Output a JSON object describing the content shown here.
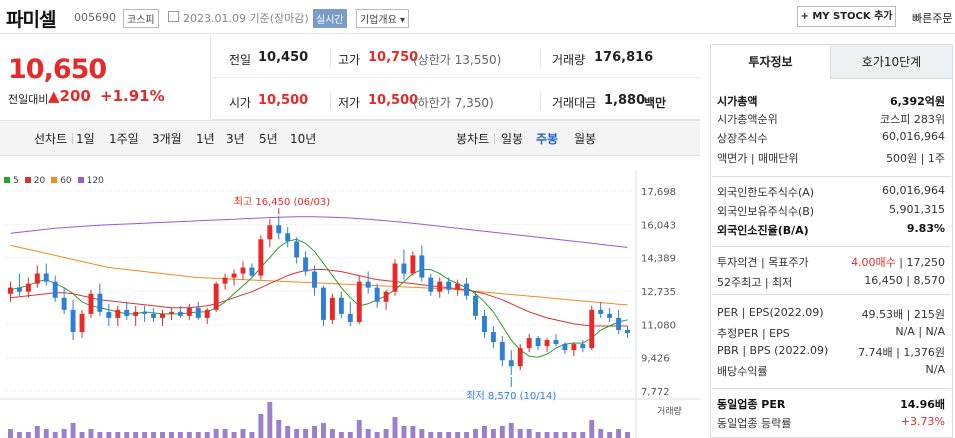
{
  "header": {
    "name": "파미셀",
    "code": "005690",
    "market": "코스피",
    "date": "2023.01.09 기준(장마감)",
    "realtime": "실시간",
    "company_info": "기업개요 ▾",
    "mystock": "+ MY STOCK 추가",
    "quick_order": "빠른주문"
  },
  "price": {
    "current": "10,650",
    "compare_label": "전일대비",
    "change": "▲200",
    "change_pct": "+1.91%"
  },
  "quote": {
    "prev_label": "전일",
    "prev": "10,450",
    "high_label": "고가",
    "high": "10,750",
    "upper_limit": "(상한가 13,550)",
    "volume_label": "거래량",
    "volume": "176,816",
    "open_label": "시가",
    "open": "10,500",
    "low_label": "저가",
    "low": "10,500",
    "lower_limit": "(하한가 7,350)",
    "amount_label": "거래대금",
    "amount": "1,880",
    "amount_unit": "백만"
  },
  "chart_tabs": {
    "line_label": "선차트",
    "line_items": [
      "1일",
      "1주일",
      "3개월",
      "1년",
      "3년",
      "5년",
      "10년"
    ],
    "candle_label": "봉차트",
    "candle_items": [
      "일봉",
      "주봉",
      "월봉"
    ],
    "selected": "주봉"
  },
  "chart_data": {
    "type": "candlestick",
    "legend": [
      {
        "name": "5",
        "color": "#2ca02c"
      },
      {
        "name": "20",
        "color": "#e03030"
      },
      {
        "name": "60",
        "color": "#f08c1c"
      },
      {
        "name": "120",
        "color": "#9b59d0"
      }
    ],
    "y_ticks": [
      "17,698",
      "16,043",
      "14,389",
      "12,735",
      "11,080",
      "9,426",
      "7,772"
    ],
    "ylim": [
      7772,
      17698
    ],
    "max_label": "최고 16,450 (06/03)",
    "min_label": "최저 8,570 (10/14)",
    "volume_label": "거래량",
    "candles": [
      [
        12600,
        13200,
        12200,
        12900
      ],
      [
        12900,
        13600,
        12500,
        12700
      ],
      [
        12700,
        13400,
        12400,
        13100
      ],
      [
        13100,
        14000,
        12900,
        13600
      ],
      [
        13600,
        14100,
        13000,
        13200
      ],
      [
        13200,
        13500,
        12200,
        12400
      ],
      [
        12400,
        12900,
        11600,
        11800
      ],
      [
        11800,
        12300,
        10300,
        10700
      ],
      [
        10700,
        11800,
        10400,
        11600
      ],
      [
        11600,
        12800,
        11400,
        12600
      ],
      [
        12600,
        13100,
        11500,
        11700
      ],
      [
        11700,
        12100,
        11000,
        11400
      ],
      [
        11400,
        12000,
        11000,
        11800
      ],
      [
        11800,
        12200,
        11300,
        11500
      ],
      [
        11500,
        12000,
        11000,
        11700
      ],
      [
        11700,
        12000,
        11200,
        11600
      ],
      [
        11600,
        11900,
        11200,
        11400
      ],
      [
        11400,
        11800,
        11000,
        11600
      ],
      [
        11600,
        11900,
        11300,
        11700
      ],
      [
        11700,
        12000,
        11400,
        11500
      ],
      [
        11500,
        12100,
        11300,
        11900
      ],
      [
        11900,
        12200,
        11300,
        11400
      ],
      [
        11400,
        11900,
        11100,
        11800
      ],
      [
        11800,
        13200,
        11700,
        13100
      ],
      [
        13100,
        13600,
        12800,
        13400
      ],
      [
        13400,
        13800,
        13000,
        13600
      ],
      [
        13600,
        14200,
        13300,
        13900
      ],
      [
        13900,
        14100,
        13400,
        13500
      ],
      [
        13500,
        15500,
        13300,
        15300
      ],
      [
        15300,
        16300,
        14900,
        16000
      ],
      [
        16000,
        16450,
        15300,
        15600
      ],
      [
        15600,
        15900,
        14900,
        15200
      ],
      [
        15200,
        15400,
        14100,
        14400
      ],
      [
        14400,
        14700,
        13500,
        13700
      ],
      [
        13700,
        14000,
        12500,
        12900
      ],
      [
        12900,
        13000,
        11000,
        11300
      ],
      [
        11300,
        12600,
        11100,
        12400
      ],
      [
        12400,
        12700,
        11400,
        11600
      ],
      [
        11600,
        12200,
        11000,
        11200
      ],
      [
        11200,
        13500,
        11100,
        13200
      ],
      [
        13200,
        13700,
        12600,
        12900
      ],
      [
        12900,
        13100,
        11900,
        12200
      ],
      [
        12200,
        12800,
        11800,
        12700
      ],
      [
        12700,
        14300,
        12500,
        14100
      ],
      [
        14100,
        14800,
        13300,
        13600
      ],
      [
        13600,
        14700,
        13500,
        14500
      ],
      [
        14500,
        15000,
        13200,
        13400
      ],
      [
        13400,
        13600,
        12500,
        12700
      ],
      [
        12700,
        13400,
        12400,
        13200
      ],
      [
        13200,
        13400,
        12600,
        12800
      ],
      [
        12800,
        13300,
        12500,
        13100
      ],
      [
        13100,
        13400,
        12300,
        12500
      ],
      [
        12500,
        12700,
        11300,
        11500
      ],
      [
        11500,
        11800,
        10400,
        10700
      ],
      [
        10700,
        11000,
        9900,
        10200
      ],
      [
        10200,
        10500,
        9000,
        9300
      ],
      [
        9300,
        9800,
        8570,
        9000
      ],
      [
        9000,
        10100,
        8800,
        9900
      ],
      [
        9900,
        10600,
        9700,
        10400
      ],
      [
        10400,
        10500,
        9800,
        10000
      ],
      [
        10000,
        10400,
        9700,
        10300
      ],
      [
        10300,
        10600,
        10000,
        10100
      ],
      [
        10100,
        10200,
        9600,
        9800
      ],
      [
        9800,
        10200,
        9500,
        10100
      ],
      [
        10100,
        10300,
        9700,
        9900
      ],
      [
        9900,
        12000,
        9800,
        11800
      ],
      [
        11800,
        12200,
        11400,
        11600
      ],
      [
        11600,
        11900,
        11200,
        11400
      ],
      [
        11400,
        11800,
        10600,
        10800
      ],
      [
        10800,
        11000,
        10400,
        10650
      ]
    ],
    "ma5": [
      12800,
      12900,
      13000,
      13200,
      13300,
      13100,
      12900,
      12600,
      12200,
      12000,
      11900,
      11800,
      11700,
      11600,
      11600,
      11700,
      11650,
      11600,
      11600,
      11600,
      11650,
      11700,
      11700,
      11900,
      12200,
      12600,
      13000,
      13400,
      13900,
      14400,
      14900,
      15200,
      15300,
      15100,
      14700,
      14100,
      13500,
      12900,
      12400,
      12000,
      12100,
      12300,
      12500,
      12800,
      13200,
      13600,
      13800,
      13800,
      13600,
      13300,
      13100,
      12900,
      12600,
      12200,
      11700,
      11000,
      10300,
      9800,
      9500,
      9450,
      9600,
      9900,
      10100,
      10150,
      10150,
      10400,
      10800,
      11000,
      11200,
      11300
    ],
    "ma20": [
      12400,
      12450,
      12500,
      12550,
      12600,
      12650,
      12650,
      12600,
      12500,
      12400,
      12300,
      12250,
      12200,
      12150,
      12100,
      12050,
      12000,
      11950,
      11900,
      11900,
      11900,
      11950,
      12000,
      12100,
      12250,
      12400,
      12550,
      12700,
      12900,
      13100,
      13300,
      13500,
      13650,
      13750,
      13800,
      13800,
      13750,
      13700,
      13600,
      13500,
      13400,
      13300,
      13250,
      13200,
      13150,
      13100,
      13050,
      13000,
      12950,
      12900,
      12850,
      12800,
      12700,
      12600,
      12450,
      12300,
      12100,
      11900,
      11700,
      11550,
      11400,
      11300,
      11200,
      11100,
      11050,
      11000,
      11000,
      11000,
      11000,
      11000
    ],
    "ma60": [
      15000,
      14900,
      14800,
      14700,
      14600,
      14500,
      14400,
      14300,
      14200,
      14100,
      14000,
      13900,
      13850,
      13800,
      13750,
      13700,
      13650,
      13600,
      13550,
      13500,
      13450,
      13400,
      13380,
      13360,
      13340,
      13320,
      13300,
      13280,
      13260,
      13240,
      13220,
      13200,
      13180,
      13160,
      13140,
      13120,
      13100,
      13080,
      13060,
      13040,
      13020,
      13000,
      12980,
      12960,
      12940,
      12920,
      12900,
      12880,
      12860,
      12840,
      12800,
      12760,
      12720,
      12680,
      12640,
      12600,
      12560,
      12520,
      12480,
      12440,
      12400,
      12360,
      12320,
      12280,
      12240,
      12200,
      12160,
      12120,
      12080,
      12050
    ],
    "ma120": [
      15600,
      15650,
      15700,
      15750,
      15800,
      15850,
      15880,
      15910,
      15940,
      15970,
      16000,
      16020,
      16040,
      16060,
      16080,
      16100,
      16120,
      16140,
      16160,
      16180,
      16200,
      16220,
      16240,
      16260,
      16280,
      16300,
      16320,
      16340,
      16360,
      16380,
      16400,
      16410,
      16420,
      16420,
      16420,
      16410,
      16400,
      16380,
      16360,
      16330,
      16300,
      16260,
      16220,
      16180,
      16140,
      16100,
      16050,
      16000,
      15950,
      15900,
      15850,
      15800,
      15750,
      15700,
      15650,
      15600,
      15550,
      15500,
      15450,
      15400,
      15350,
      15300,
      15250,
      15200,
      15150,
      15100,
      15050,
      15000,
      14950,
      14900
    ]
  },
  "right_panel": {
    "tab_invest": "투자정보",
    "tab_hoga": "호가10단계",
    "rows": [
      {
        "label": "시가총액",
        "value": "6,392억원",
        "bold": true
      },
      {
        "label": "시가총액순위",
        "value": "코스피 283위"
      },
      {
        "label": "상장주식수",
        "value": "60,016,964"
      },
      {
        "label": "액면가 | 매매단위",
        "value": "500원 | 1주"
      },
      {
        "label": "외국인한도주식수(A)",
        "value": "60,016,964"
      },
      {
        "label": "외국인보유주식수(B)",
        "value": "5,901,315"
      },
      {
        "label": "외국인소진율(B/A)",
        "value": "9.83%",
        "bold": true
      },
      {
        "label": "투자의견 | 목표주가",
        "value_red": "4.00매수",
        "value": "| 17,250"
      },
      {
        "label": "52주최고 | 최저",
        "value": "16,450 | 8,570"
      },
      {
        "label": "PER | EPS(2022.09)",
        "value": "49.53배 | 215원"
      },
      {
        "label": "추정PER | EPS",
        "value": "N/A | N/A"
      },
      {
        "label": "PBR | BPS (2022.09)",
        "value": "7.74배 | 1,376원"
      },
      {
        "label": "배당수익률",
        "value": "N/A"
      },
      {
        "label": "동일업종 PER",
        "value": "14.96배",
        "bold": true
      },
      {
        "label": "동일업종 등락률",
        "value": "+3.73%",
        "red": true
      }
    ]
  }
}
